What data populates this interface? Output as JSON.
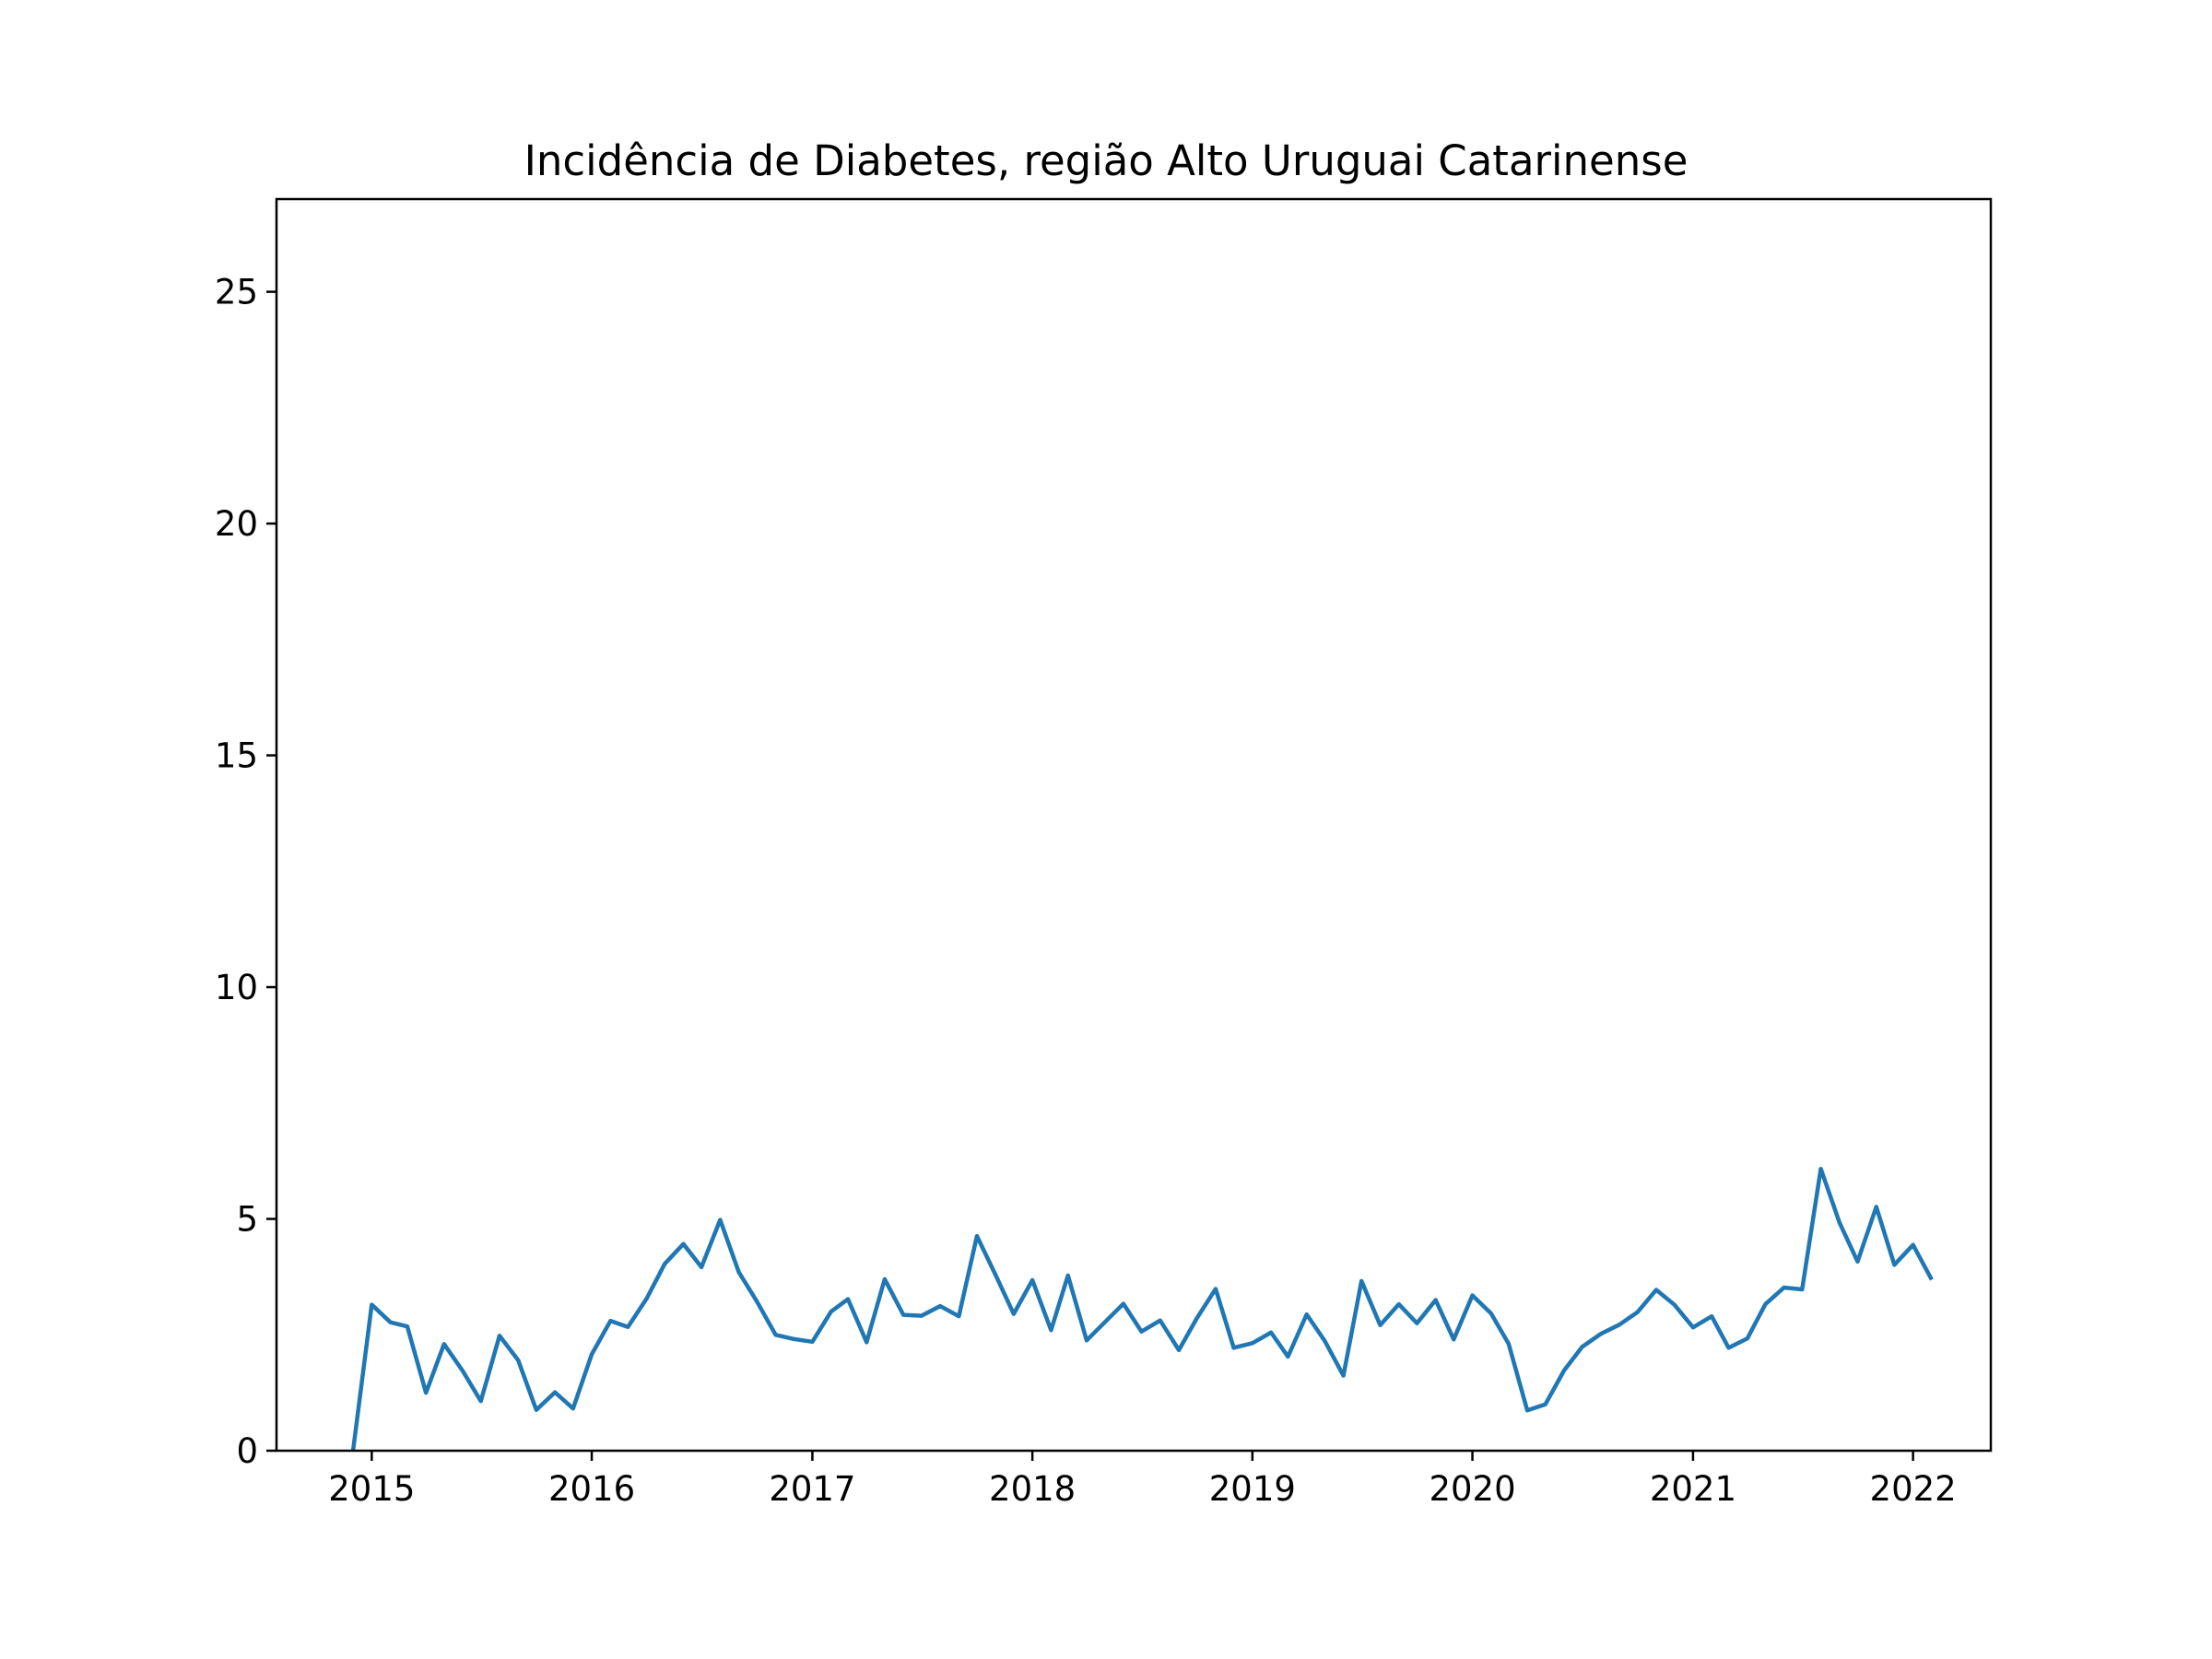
{
  "chart_data": {
    "type": "line",
    "title": "Incidência de Diabetes, região Alto Uruguai Catarinense",
    "xlabel": "",
    "ylabel": "",
    "x_tick_labels": [
      "2015",
      "2016",
      "2017",
      "2018",
      "2019",
      "2020",
      "2021",
      "2022"
    ],
    "y_tick_labels": [
      "0",
      "5",
      "10",
      "15",
      "20",
      "25"
    ],
    "y_ticks": [
      0,
      5,
      10,
      15,
      20,
      25
    ],
    "ylim": [
      0,
      27
    ],
    "xlim": [
      "2014-07-27",
      "2022-05-10"
    ],
    "grid": false,
    "legend": "none",
    "line_color": "#1f77b4",
    "series": [
      {
        "x": [
          "2014-12",
          "2015-01",
          "2015-02",
          "2015-03",
          "2015-04",
          "2015-05",
          "2015-06",
          "2015-07",
          "2015-08",
          "2015-09",
          "2015-10",
          "2015-11",
          "2015-12",
          "2016-01",
          "2016-02",
          "2016-03",
          "2016-04",
          "2016-05",
          "2016-06",
          "2016-07",
          "2016-08",
          "2016-09",
          "2016-10",
          "2016-11",
          "2016-12",
          "2017-01",
          "2017-02",
          "2017-03",
          "2017-04",
          "2017-05",
          "2017-06",
          "2017-07",
          "2017-08",
          "2017-09",
          "2017-10",
          "2017-11",
          "2017-12",
          "2018-01",
          "2018-02",
          "2018-03",
          "2018-04",
          "2018-05",
          "2018-06",
          "2018-07",
          "2018-08",
          "2018-09",
          "2018-10",
          "2018-11",
          "2018-12",
          "2019-01",
          "2019-02",
          "2019-03",
          "2019-04",
          "2019-05",
          "2019-06",
          "2019-07",
          "2019-08",
          "2019-09",
          "2019-10",
          "2019-11",
          "2019-12",
          "2020-01",
          "2020-02",
          "2020-03",
          "2020-04",
          "2020-05",
          "2020-06",
          "2020-07",
          "2020-08",
          "2020-09",
          "2020-10",
          "2020-11",
          "2020-12",
          "2021-01",
          "2021-02",
          "2021-03",
          "2021-04",
          "2021-05",
          "2021-06",
          "2021-07",
          "2021-08",
          "2021-09",
          "2021-10",
          "2021-11",
          "2021-12",
          "2022-01",
          "2022-02"
        ],
        "values": [
          0.0,
          3.15,
          2.77,
          2.68,
          1.25,
          2.3,
          1.72,
          1.07,
          2.48,
          1.95,
          0.88,
          1.26,
          0.91,
          2.08,
          2.8,
          2.67,
          3.28,
          4.03,
          4.46,
          3.96,
          4.98,
          3.85,
          3.22,
          2.5,
          2.41,
          2.35,
          3.0,
          3.27,
          2.34,
          3.7,
          2.93,
          2.91,
          3.12,
          2.9,
          4.63,
          3.79,
          2.95,
          3.68,
          2.6,
          3.78,
          2.38,
          2.77,
          3.17,
          2.57,
          2.81,
          2.17,
          2.86,
          3.49,
          2.22,
          2.32,
          2.55,
          2.03,
          2.94,
          2.37,
          1.62,
          3.66,
          2.71,
          3.16,
          2.75,
          3.25,
          2.4,
          3.35,
          2.96,
          2.31,
          0.87,
          1.0,
          1.73,
          2.24,
          2.52,
          2.72,
          2.99,
          3.47,
          3.15,
          2.66,
          2.9,
          2.22,
          2.42,
          3.16,
          3.52,
          3.48,
          6.08,
          4.92,
          4.08,
          5.26,
          4.01,
          4.44,
          3.69
        ]
      }
    ]
  }
}
